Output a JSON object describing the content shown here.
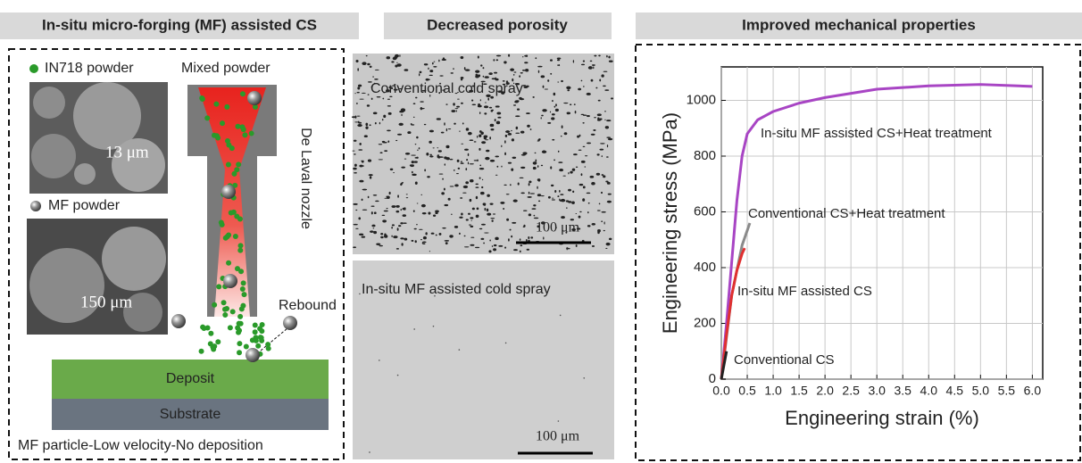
{
  "headers": [
    "In-situ micro-forging (MF) assisted CS",
    "Decreased porosity",
    "Improved mechanical properties"
  ],
  "schematic": {
    "in718": "IN718 powder",
    "mixed": "Mixed powder",
    "size1": "13 μm",
    "mf": "MF powder",
    "size2": "150 μm",
    "nozzle": "De Laval nozzle",
    "rebound": "Rebound",
    "deposit": "Deposit",
    "substrate": "Substrate",
    "caption": "MF particle-Low velocity-No deposition"
  },
  "micrographs": [
    {
      "label": "Conventional cold  spray",
      "scale": "100 μm"
    },
    {
      "label": "In-situ MF assisted cold spray",
      "scale": "100 μm"
    }
  ],
  "chart_data": {
    "type": "line",
    "x_label": "Engineering strain (%)",
    "y_label": "Engineering stress (MPa)",
    "xlim": [
      0,
      6.2
    ],
    "ylim": [
      0,
      1120
    ],
    "grid": true,
    "xticks": [
      {
        "value": 0,
        "label": "0.0"
      },
      0.5,
      {
        "value": 1,
        "label": "1.0"
      },
      1.5,
      {
        "value": 2,
        "label": "2.0"
      },
      2.5,
      {
        "value": 3,
        "label": "3.0"
      },
      3.5,
      {
        "value": 4,
        "label": "4.0"
      },
      4.5,
      {
        "value": 5,
        "label": "5.0"
      },
      5.5,
      {
        "value": 6,
        "label": "6.0"
      }
    ],
    "yticks": [
      0,
      200,
      400,
      600,
      800,
      1000
    ],
    "series": [
      {
        "name": "In-situ MF assisted CS+Heat treatment",
        "color": "#a845c4",
        "x": [
          0,
          0.1,
          0.2,
          0.3,
          0.4,
          0.5,
          0.7,
          1.0,
          1.5,
          2.0,
          3.0,
          4.0,
          5.0,
          6.0
        ],
        "values": [
          0,
          200,
          420,
          640,
          800,
          880,
          930,
          960,
          990,
          1010,
          1040,
          1052,
          1057,
          1050
        ]
      },
      {
        "name": "Conventional CS+Heat treatment",
        "color": "#8a8a8a",
        "x": [
          0,
          0.2,
          0.4,
          0.55
        ],
        "values": [
          0,
          300,
          480,
          560
        ]
      },
      {
        "name": "In-situ MF assisted CS",
        "color": "#e03030",
        "x": [
          0,
          0.1,
          0.2,
          0.3,
          0.4,
          0.45
        ],
        "values": [
          0,
          160,
          300,
          390,
          450,
          470
        ]
      },
      {
        "name": "Conventional CS",
        "color": "#222222",
        "x": [
          0,
          0.05,
          0.1
        ],
        "values": [
          0,
          50,
          100
        ]
      }
    ]
  }
}
